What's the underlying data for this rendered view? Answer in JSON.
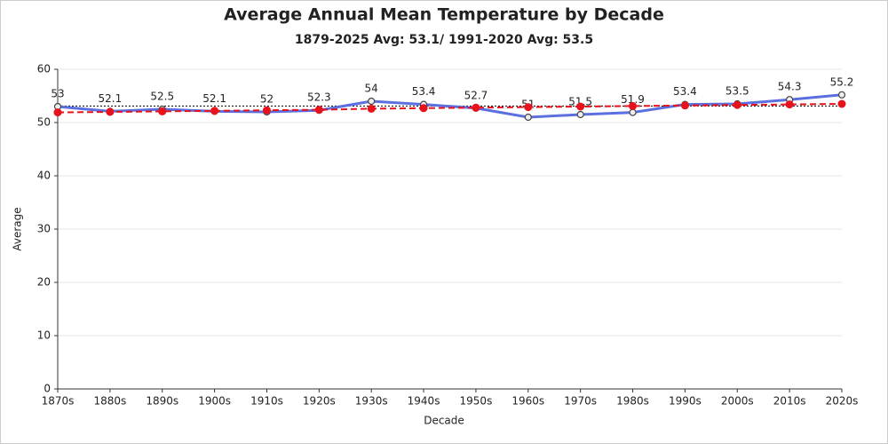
{
  "chart_data": {
    "type": "line",
    "title": "Average Annual Mean Temperature by Decade",
    "subtitle": "1879-2025 Avg: 53.1/ 1991-2020 Avg: 53.5",
    "x_label": "Decade",
    "y_label": "Average",
    "categories": [
      "1870s",
      "1880s",
      "1890s",
      "1900s",
      "1910s",
      "1920s",
      "1930s",
      "1940s",
      "1950s",
      "1960s",
      "1970s",
      "1980s",
      "1990s",
      "2000s",
      "2010s",
      "2020s"
    ],
    "series": [
      {
        "color": "#5b6fe0",
        "values": [
          53,
          52.1,
          52.5,
          52.1,
          52,
          52.3,
          54,
          53.4,
          52.7,
          51,
          51.5,
          51.9,
          53.4,
          53.5,
          54.3,
          55.2
        ],
        "data_labels": true
      },
      {
        "color": "#e8121c",
        "dashed": true,
        "values": [
          51.9,
          52.0,
          52.1,
          52.2,
          52.3,
          52.4,
          52.6,
          52.7,
          52.8,
          52.9,
          53.0,
          53.1,
          53.2,
          53.3,
          53.4,
          53.5
        ]
      }
    ],
    "average_line": 53.1,
    "ylim": [
      0,
      60
    ],
    "yticks": [
      0,
      10,
      20,
      30,
      40,
      50,
      60
    ],
    "grid": true
  }
}
